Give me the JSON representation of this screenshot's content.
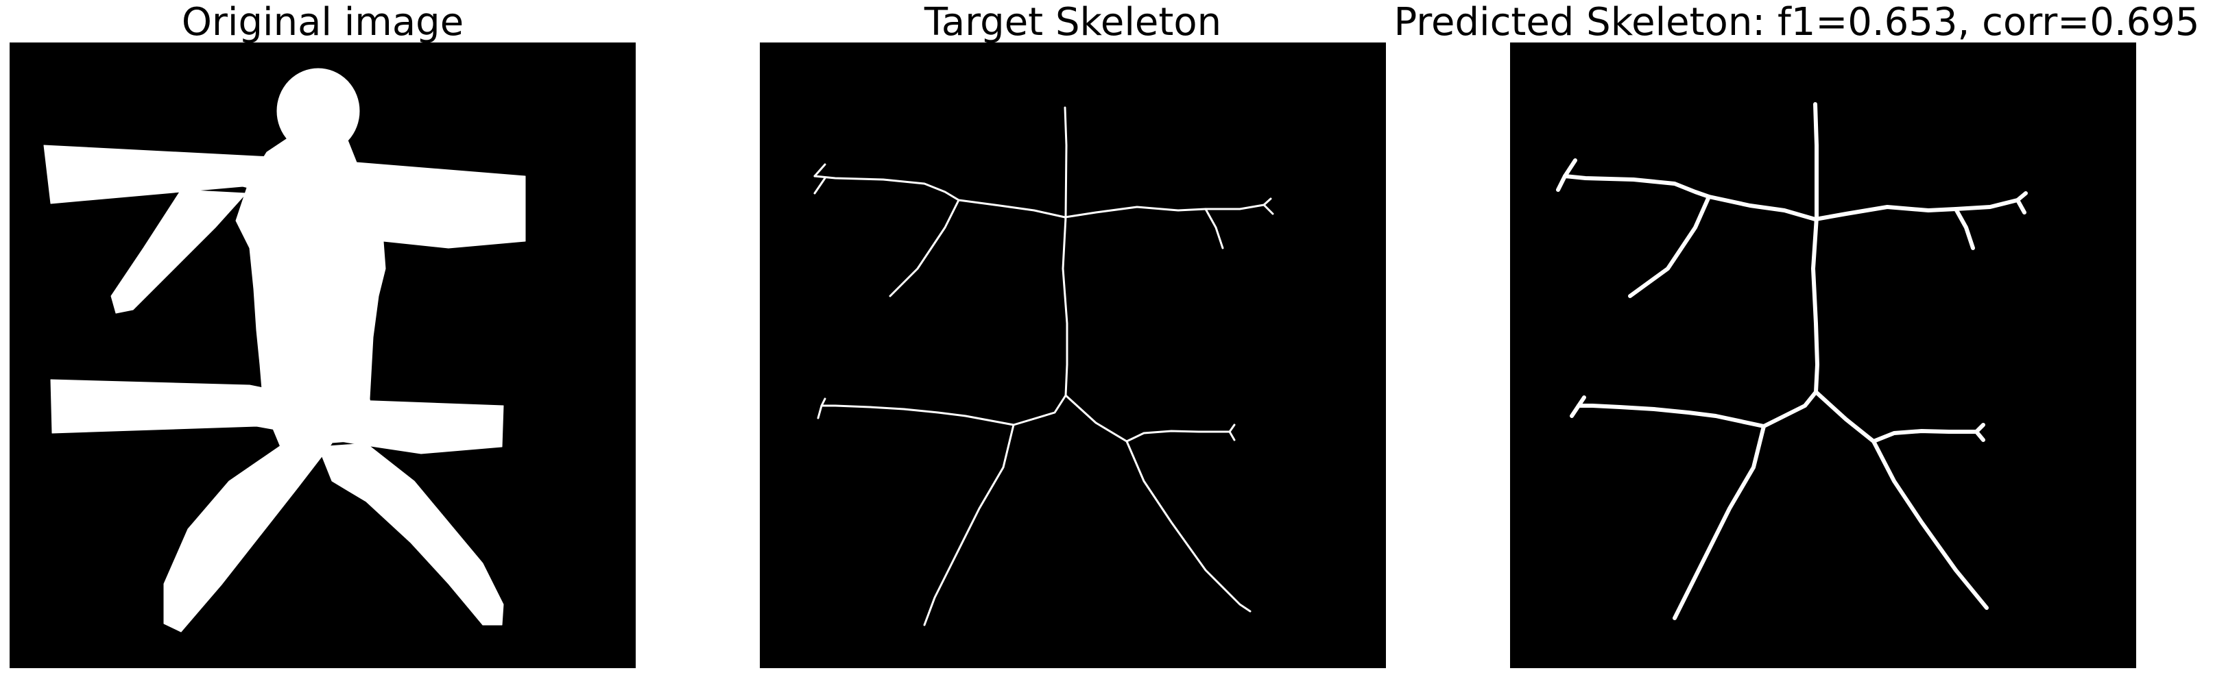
{
  "panels": [
    {
      "title": "Original image"
    },
    {
      "title": "Target Skeleton"
    },
    {
      "title": "Predicted Skeleton: f1=0.653, corr=0.695"
    }
  ]
}
